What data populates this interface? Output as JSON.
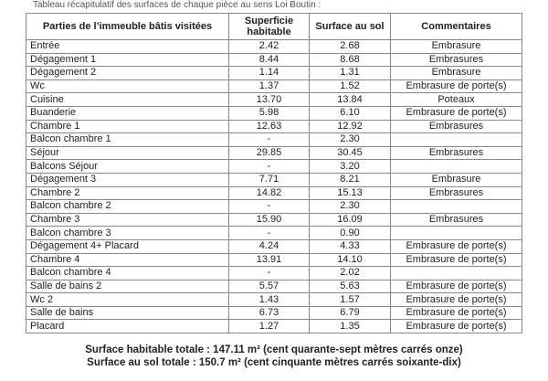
{
  "caption": "Tableau récapitulatif des surfaces de chaque pièce au sens Loi Boutin :",
  "table": {
    "headers": [
      "Parties de l’immeuble bâtis visitées",
      "Superficie habitable",
      "Surface au sol",
      "Commentaires"
    ],
    "rows": [
      [
        "Entrée",
        "2.42",
        "2.68",
        "Embrasure"
      ],
      [
        "Dégagement 1",
        "8.44",
        "8.68",
        "Embrasures"
      ],
      [
        "Dégagement 2",
        "1.14",
        "1.31",
        "Embrasure"
      ],
      [
        "Wc",
        "1.37",
        "1.52",
        "Embrasure de porte(s)"
      ],
      [
        "Cuisine",
        "13.70",
        "13.84",
        "Poteaux"
      ],
      [
        "Buanderie",
        "5.98",
        "6.10",
        "Embrasure de porte(s)"
      ],
      [
        "Chambre 1",
        "12.63",
        "12.92",
        "Embrasures"
      ],
      [
        "Balcon chambre 1",
        "-",
        "2.30",
        ""
      ],
      [
        "Séjour",
        "29.85",
        "30.45",
        "Embrasures"
      ],
      [
        "Balcons Séjour",
        "-",
        "3.20",
        ""
      ],
      [
        "Dégagement 3",
        "7.71",
        "8.21",
        "Embrasure"
      ],
      [
        "Chambre 2",
        "14.82",
        "15.13",
        "Embrasures"
      ],
      [
        "Balcon chambre 2",
        "-",
        "2.30",
        ""
      ],
      [
        "Chambre 3",
        "15.90",
        "16.09",
        "Embrasures"
      ],
      [
        "Balcon chambre 3",
        "-",
        "0.90",
        ""
      ],
      [
        "Dégagement 4+ Placard",
        "4.24",
        "4.33",
        "Embrasure de porte(s)"
      ],
      [
        "Chambre 4",
        "13.91",
        "14.10",
        "Embrasure de porte(s)"
      ],
      [
        "Balcon chambre 4",
        "-",
        "2.02",
        ""
      ],
      [
        "Salle de bains 2",
        "5.57",
        "5.63",
        "Embrasure de porte(s)"
      ],
      [
        "Wc 2",
        "1.43",
        "1.57",
        "Embrasure de porte(s)"
      ],
      [
        "Salle de bains",
        "6.73",
        "6.79",
        "Embrasure de porte(s)"
      ],
      [
        "Placard",
        "1.27",
        "1.35",
        "Embrasure de porte(s)"
      ]
    ]
  },
  "totals": {
    "habitable": "Surface habitable totale : 147.11 m² (cent quarante-sept mètres carrés onze)",
    "sol": "Surface au sol totale : 150.7 m² (cent cinquante mètres carrés soixante-dix)"
  }
}
